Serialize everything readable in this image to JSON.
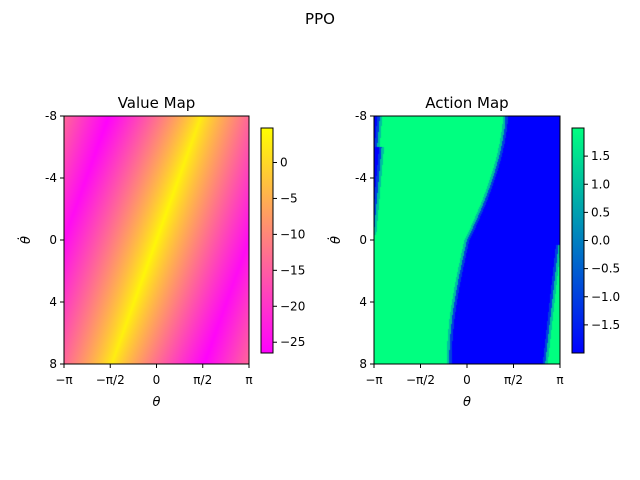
{
  "figure": {
    "suptitle": "PPO"
  },
  "colors": {
    "spring_start": "#ff00ff",
    "spring_end": "#ffff00",
    "winter_start": "#0000ff",
    "winter_end": "#00ff80"
  },
  "chart_data": [
    {
      "type": "heatmap",
      "title": "Value Map",
      "xlabel": "θ",
      "ylabel": "θ̇",
      "x_range": [
        -3.14159,
        3.14159
      ],
      "y_range": [
        -8,
        8
      ],
      "y_inverted": true,
      "xticks": [
        {
          "value": -3.14159,
          "label": "−π"
        },
        {
          "value": -1.5708,
          "label": "−π/2"
        },
        {
          "value": 0,
          "label": "0"
        },
        {
          "value": 1.5708,
          "label": "π/2"
        },
        {
          "value": 3.14159,
          "label": "π"
        }
      ],
      "yticks": [
        {
          "value": -8,
          "label": "-8"
        },
        {
          "value": -4,
          "label": "-4"
        },
        {
          "value": 0,
          "label": "0"
        },
        {
          "value": 4,
          "label": "4"
        },
        {
          "value": 8,
          "label": "8"
        }
      ],
      "colormap": "spring",
      "colorbar": {
        "range": [
          -26.5,
          4.8
        ],
        "ticks": [
          {
            "value": 0,
            "label": "0"
          },
          {
            "value": -5,
            "label": "−5"
          },
          {
            "value": -10,
            "label": "−10"
          },
          {
            "value": -15,
            "label": "−15"
          },
          {
            "value": -20,
            "label": "−20"
          },
          {
            "value": -25,
            "label": "−25"
          }
        ]
      },
      "description": "Diagonal high-value ridge (~0 to 4) running from theta≈-π/2 at thetadot=8 to theta≈π/2 at thetadot=-8; values fall to about -25 far from the ridge (upper-left and lower-right corners)."
    },
    {
      "type": "heatmap",
      "title": "Action Map",
      "xlabel": "θ",
      "ylabel": "θ̇",
      "x_range": [
        -3.14159,
        3.14159
      ],
      "y_range": [
        -8,
        8
      ],
      "y_inverted": true,
      "xticks": [
        {
          "value": -3.14159,
          "label": "−π"
        },
        {
          "value": -1.5708,
          "label": "−π/2"
        },
        {
          "value": 0,
          "label": "0"
        },
        {
          "value": 1.5708,
          "label": "π/2"
        },
        {
          "value": 3.14159,
          "label": "π"
        }
      ],
      "yticks": [
        {
          "value": -8,
          "label": "-8"
        },
        {
          "value": -4,
          "label": "-4"
        },
        {
          "value": 0,
          "label": "0"
        },
        {
          "value": 4,
          "label": "4"
        },
        {
          "value": 8,
          "label": "8"
        }
      ],
      "colormap": "winter",
      "colorbar": {
        "range": [
          -2.0,
          2.0
        ],
        "ticks": [
          {
            "value": 1.5,
            "label": "1.5"
          },
          {
            "value": 1.0,
            "label": "1.0"
          },
          {
            "value": 0.5,
            "label": "0.5"
          },
          {
            "value": 0.0,
            "label": "0.0"
          },
          {
            "value": -0.5,
            "label": "−0.5"
          },
          {
            "value": -1.0,
            "label": "−1.0"
          },
          {
            "value": -1.5,
            "label": "−1.5"
          }
        ]
      },
      "description": "Bang-bang policy: action +2 (green) in an S-shaped band, -2 (blue) elsewhere; blue region on the right for theta above ~1.3 at thetadot=-8 and above ~-0.6 at thetadot=8, plus blue patches at left top and right bottom edges."
    }
  ]
}
